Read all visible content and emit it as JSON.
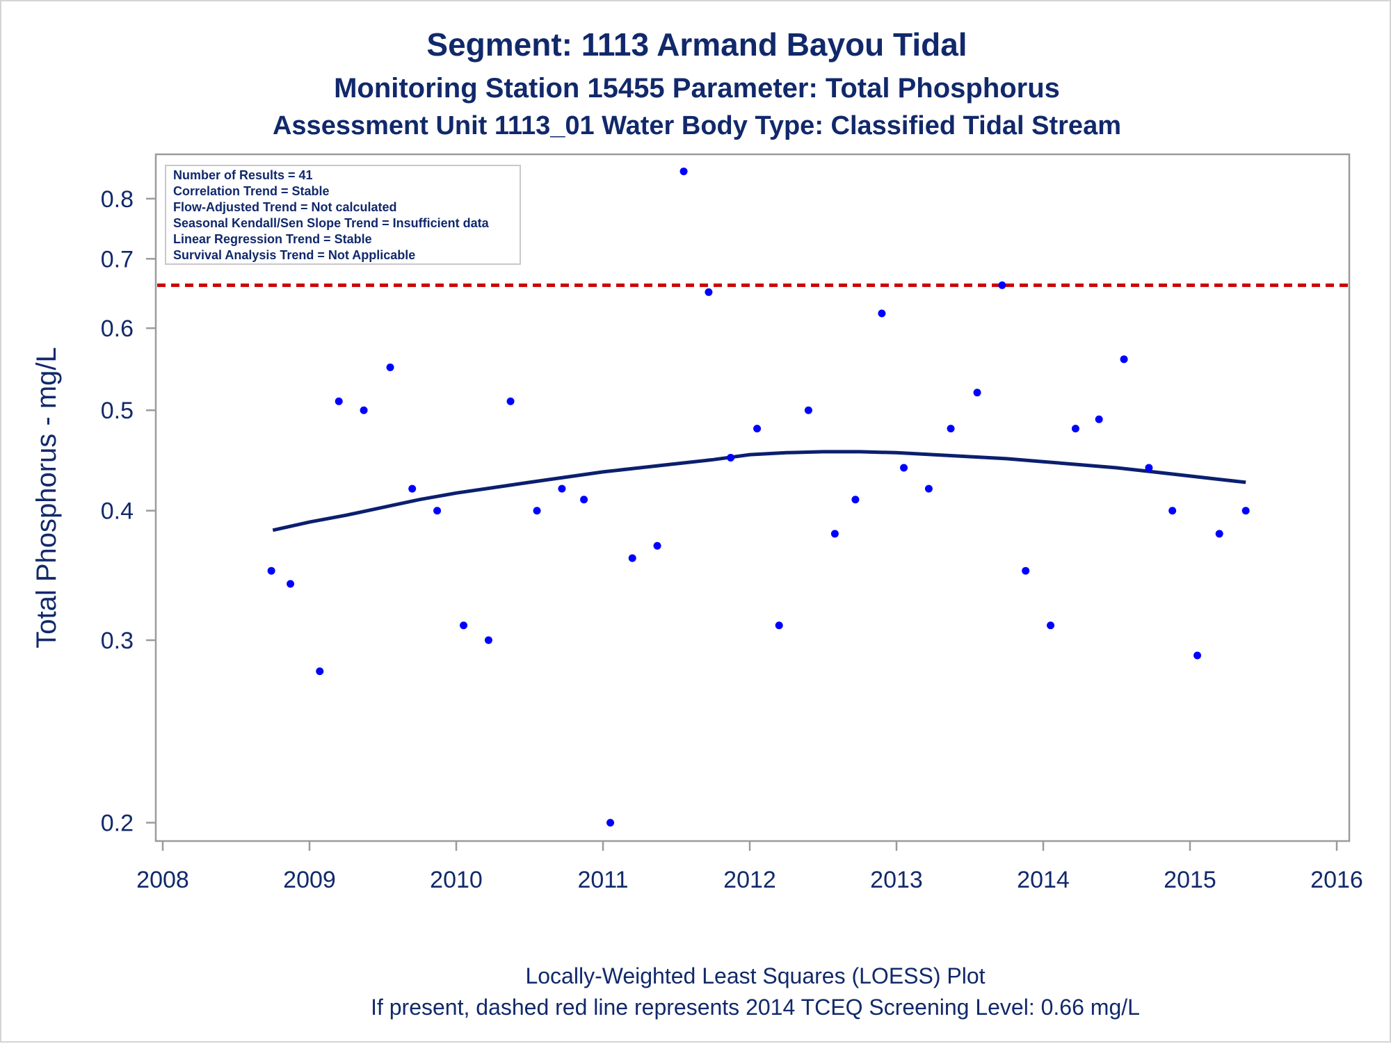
{
  "chart_data": {
    "type": "scatter",
    "title": "Segment: 1113  Armand Bayou Tidal",
    "subtitle": "Monitoring Station 15455 Parameter: Total Phosphorus",
    "subtitle2": "Assessment Unit 1113_01   Water Body Type: Classified Tidal Stream",
    "ylabel": "Total Phosphorus - mg/L",
    "footnote1": "Locally-Weighted Least Squares (LOESS) Plot",
    "footnote2": "If present, dashed red line represents 2014 TCEQ Screening Level: 0.66 mg/L",
    "xlim": [
      2008,
      2016
    ],
    "ylim": [
      0.195,
      0.86
    ],
    "y_scale": "log",
    "xticks": [
      2008,
      2009,
      2010,
      2011,
      2012,
      2013,
      2014,
      2015,
      2016
    ],
    "xtick_labels": [
      "2008",
      "2009",
      "2010",
      "2011",
      "2012",
      "2013",
      "2014",
      "2015",
      "2016"
    ],
    "yticks": [
      0.2,
      0.3,
      0.4,
      0.5,
      0.6,
      0.7,
      0.8
    ],
    "ytick_labels": [
      "0.2",
      "0.3",
      "0.4",
      "0.5",
      "0.6",
      "0.7",
      "0.8"
    ],
    "grid": false,
    "stats_box": [
      "Number of Results = 41",
      "Correlation Trend = Stable",
      "Flow-Adjusted Trend = Not calculated",
      "Seasonal Kendall/Sen Slope Trend = Insufficient data",
      "Linear Regression Trend = Stable",
      "Survival Analysis Trend = Not Applicable"
    ],
    "stats_box_position": "top-left",
    "screening_level": 0.66,
    "colors": {
      "points": "#0000ff",
      "loess": "#0b1f6e",
      "screening": "#cc0000",
      "text": "#11296b",
      "axis": "#9b9b9b"
    },
    "series": [
      {
        "kind": "points",
        "x": [
          2008.74,
          2008.87,
          2009.07,
          2009.2,
          2009.37,
          2009.55,
          2009.7,
          2009.87,
          2010.05,
          2010.22,
          2010.37,
          2010.55,
          2010.72,
          2010.87,
          2011.05,
          2011.2,
          2011.37,
          2011.55,
          2011.72,
          2011.87,
          2012.05,
          2012.2,
          2012.4,
          2012.58,
          2012.72,
          2012.9,
          2013.05,
          2013.22,
          2013.37,
          2013.55,
          2013.72,
          2013.88,
          2014.05,
          2014.22,
          2014.38,
          2014.55,
          2014.72,
          2014.88,
          2015.05,
          2015.2,
          2015.38
        ],
        "y": [
          0.35,
          0.34,
          0.28,
          0.51,
          0.5,
          0.55,
          0.42,
          0.4,
          0.31,
          0.3,
          0.51,
          0.4,
          0.42,
          0.41,
          0.2,
          0.36,
          0.37,
          0.85,
          0.65,
          0.45,
          0.48,
          0.31,
          0.5,
          0.38,
          0.41,
          0.62,
          0.44,
          0.42,
          0.48,
          0.52,
          0.66,
          0.35,
          0.31,
          0.48,
          0.49,
          0.56,
          0.44,
          0.4,
          0.29,
          0.38,
          0.4
        ]
      },
      {
        "kind": "loess",
        "x": [
          2008.75,
          2009.0,
          2009.25,
          2009.5,
          2009.75,
          2010.0,
          2010.25,
          2010.5,
          2010.75,
          2011.0,
          2011.25,
          2011.5,
          2011.75,
          2012.0,
          2012.25,
          2012.5,
          2012.75,
          2013.0,
          2013.25,
          2013.5,
          2013.75,
          2014.0,
          2014.25,
          2014.5,
          2014.75,
          2015.0,
          2015.25,
          2015.38
        ],
        "y": [
          0.383,
          0.39,
          0.396,
          0.403,
          0.41,
          0.416,
          0.421,
          0.426,
          0.431,
          0.436,
          0.44,
          0.444,
          0.448,
          0.453,
          0.455,
          0.456,
          0.456,
          0.455,
          0.453,
          0.451,
          0.449,
          0.446,
          0.443,
          0.44,
          0.436,
          0.432,
          0.428,
          0.426
        ]
      }
    ]
  }
}
